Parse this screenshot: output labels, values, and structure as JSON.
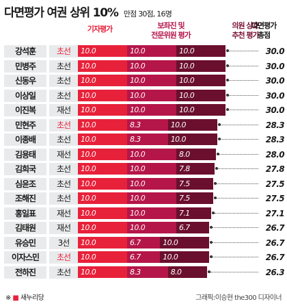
{
  "header": {
    "title": "다면평가 여권 상위 10%",
    "subtitle": "만점 30점, 16명"
  },
  "columns": {
    "self": "기자평가",
    "expert": "보좌진 및\n전문위원 평가",
    "peer": "의원 상호\n추천 평가",
    "total": "다면평가\n총점"
  },
  "footnote": {
    "mark": "※",
    "swatch": "■",
    "label": "새누리당"
  },
  "credit": "그래픽:이승현 the300 디자이너",
  "colors": {
    "self": "#e8213a",
    "expert": "#b5164a",
    "peer": "#6b0f2e",
    "ruling_party_term": "#e8213a"
  },
  "chart_data": {
    "type": "bar",
    "stacked": true,
    "orientation": "horizontal",
    "title": "다면평가 여권 상위 10%",
    "subtitle": "만점 30점, 16명",
    "max_total": 30,
    "categories": [
      "강석훈",
      "민병주",
      "신동우",
      "이상일",
      "이진복",
      "민현주",
      "이종배",
      "김용태",
      "김희국",
      "심윤조",
      "조해진",
      "홍일표",
      "김태원",
      "유승민",
      "이자스민",
      "전하진"
    ],
    "terms": [
      "초선",
      "초선",
      "초선",
      "초선",
      "재선",
      "초선",
      "초선",
      "재선",
      "초선",
      "초선",
      "초선",
      "재선",
      "재선",
      "3선",
      "초선",
      "초선"
    ],
    "term_ruling_party": [
      true,
      false,
      false,
      false,
      false,
      true,
      false,
      false,
      false,
      false,
      false,
      false,
      false,
      false,
      true,
      false
    ],
    "series": [
      {
        "name": "기자평가",
        "values": [
          10,
          10,
          10,
          10,
          10,
          10,
          10,
          10,
          10,
          10,
          10,
          10,
          10,
          10,
          10,
          10
        ]
      },
      {
        "name": "보좌진 및 전문위원 평가",
        "values": [
          10,
          10,
          10,
          10,
          10,
          8.3,
          8.3,
          10,
          10,
          10,
          10,
          10,
          10,
          6.7,
          6.7,
          8.3
        ]
      },
      {
        "name": "의원 상호 추천 평가",
        "values": [
          10,
          10,
          10,
          10,
          10,
          10,
          10,
          8.0,
          7.8,
          7.5,
          7.5,
          7.1,
          6.7,
          10,
          10,
          8.0
        ]
      }
    ],
    "totals": [
      "30.0",
      "30.0",
      "30.0",
      "30.0",
      "30.0",
      "28.3",
      "28.3",
      "28.0",
      "27.8",
      "27.5",
      "27.5",
      "27.1",
      "26.7",
      "26.7",
      "26.7",
      "26.3"
    ]
  }
}
